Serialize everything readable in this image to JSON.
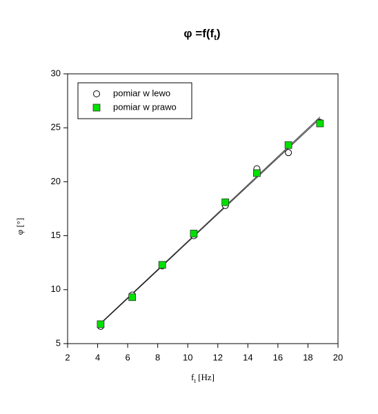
{
  "chart_data": {
    "type": "scatter",
    "title": [
      "φ =f(f",
      "t",
      ")"
    ],
    "x_label": [
      "f",
      "t",
      " [Hz]"
    ],
    "y_label": "φ [°]",
    "xlim": [
      2,
      20
    ],
    "xticks": [
      2,
      4,
      6,
      8,
      10,
      12,
      14,
      16,
      18,
      20
    ],
    "ylim": [
      5,
      30
    ],
    "yticks": [
      5,
      10,
      15,
      20,
      25,
      30
    ],
    "trendline": true,
    "legend": "upper left",
    "series": [
      {
        "name": "pomiar w lewo",
        "marker": "circle",
        "color": "#ffffff",
        "x": [
          4.2,
          6.3,
          8.3,
          10.4,
          12.5,
          14.6,
          16.7,
          18.8
        ],
        "values": [
          6.6,
          9.5,
          12.2,
          15.0,
          17.8,
          21.2,
          22.7,
          25.5
        ]
      },
      {
        "name": "pomiar w prawo",
        "marker": "square",
        "color": "#00e000",
        "x": [
          4.2,
          6.3,
          8.3,
          10.4,
          12.5,
          14.6,
          16.7,
          18.8
        ],
        "values": [
          6.8,
          9.3,
          12.3,
          15.2,
          18.1,
          20.8,
          23.4,
          25.4
        ]
      }
    ]
  }
}
